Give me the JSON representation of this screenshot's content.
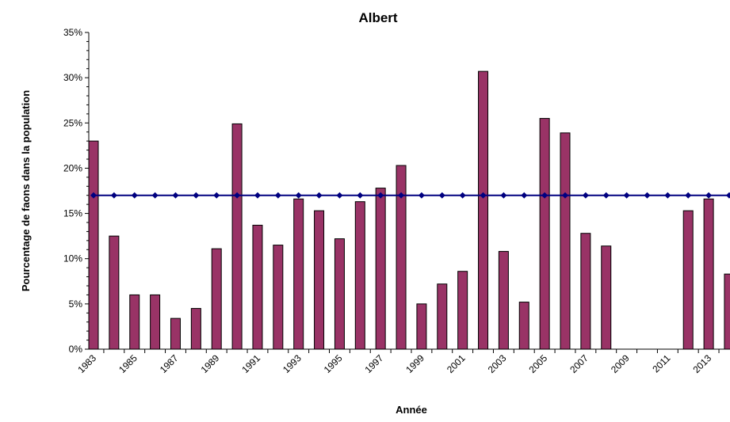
{
  "chart_data": {
    "type": "bar",
    "title": "Albert",
    "x_label": "Année",
    "y_label": "Pourcentage de faons dans la population",
    "categories": [
      "1983",
      null,
      "1985",
      null,
      "1987",
      null,
      "1989",
      null,
      "1991",
      null,
      "1993",
      null,
      "1995",
      null,
      "1997",
      null,
      "1999",
      null,
      "2001",
      null,
      "2003",
      null,
      "2005",
      null,
      "2007",
      null,
      "2009",
      null,
      "2011",
      null,
      "2013",
      null
    ],
    "series": [
      {
        "type": "bar",
        "color": "#993366",
        "values": [
          23.0,
          12.5,
          6.0,
          6.0,
          3.4,
          4.5,
          11.1,
          24.9,
          13.7,
          11.5,
          16.6,
          15.3,
          12.2,
          16.3,
          17.8,
          20.3,
          5.0,
          7.2,
          8.6,
          30.7,
          10.8,
          5.2,
          25.5,
          23.9,
          12.8,
          11.4,
          null,
          null,
          null,
          15.3,
          16.6,
          8.3
        ]
      },
      {
        "type": "line",
        "color": "#000080",
        "values": [
          17,
          17,
          17,
          17,
          17,
          17,
          17,
          17,
          17,
          17,
          17,
          17,
          17,
          17,
          17,
          17,
          17,
          17,
          17,
          17,
          17,
          17,
          17,
          17,
          17,
          17,
          17,
          17,
          17,
          17,
          17,
          17
        ]
      }
    ],
    "ylim": [
      0,
      35
    ],
    "yticks": [
      {
        "value": 0,
        "label": "0%"
      },
      {
        "value": 5,
        "label": "5%"
      },
      {
        "value": 10,
        "label": "10%"
      },
      {
        "value": 15,
        "label": "15%"
      },
      {
        "value": 20,
        "label": "20%"
      },
      {
        "value": 25,
        "label": "25%"
      },
      {
        "value": 30,
        "label": "30%"
      },
      {
        "value": 35,
        "label": "35%"
      }
    ]
  }
}
